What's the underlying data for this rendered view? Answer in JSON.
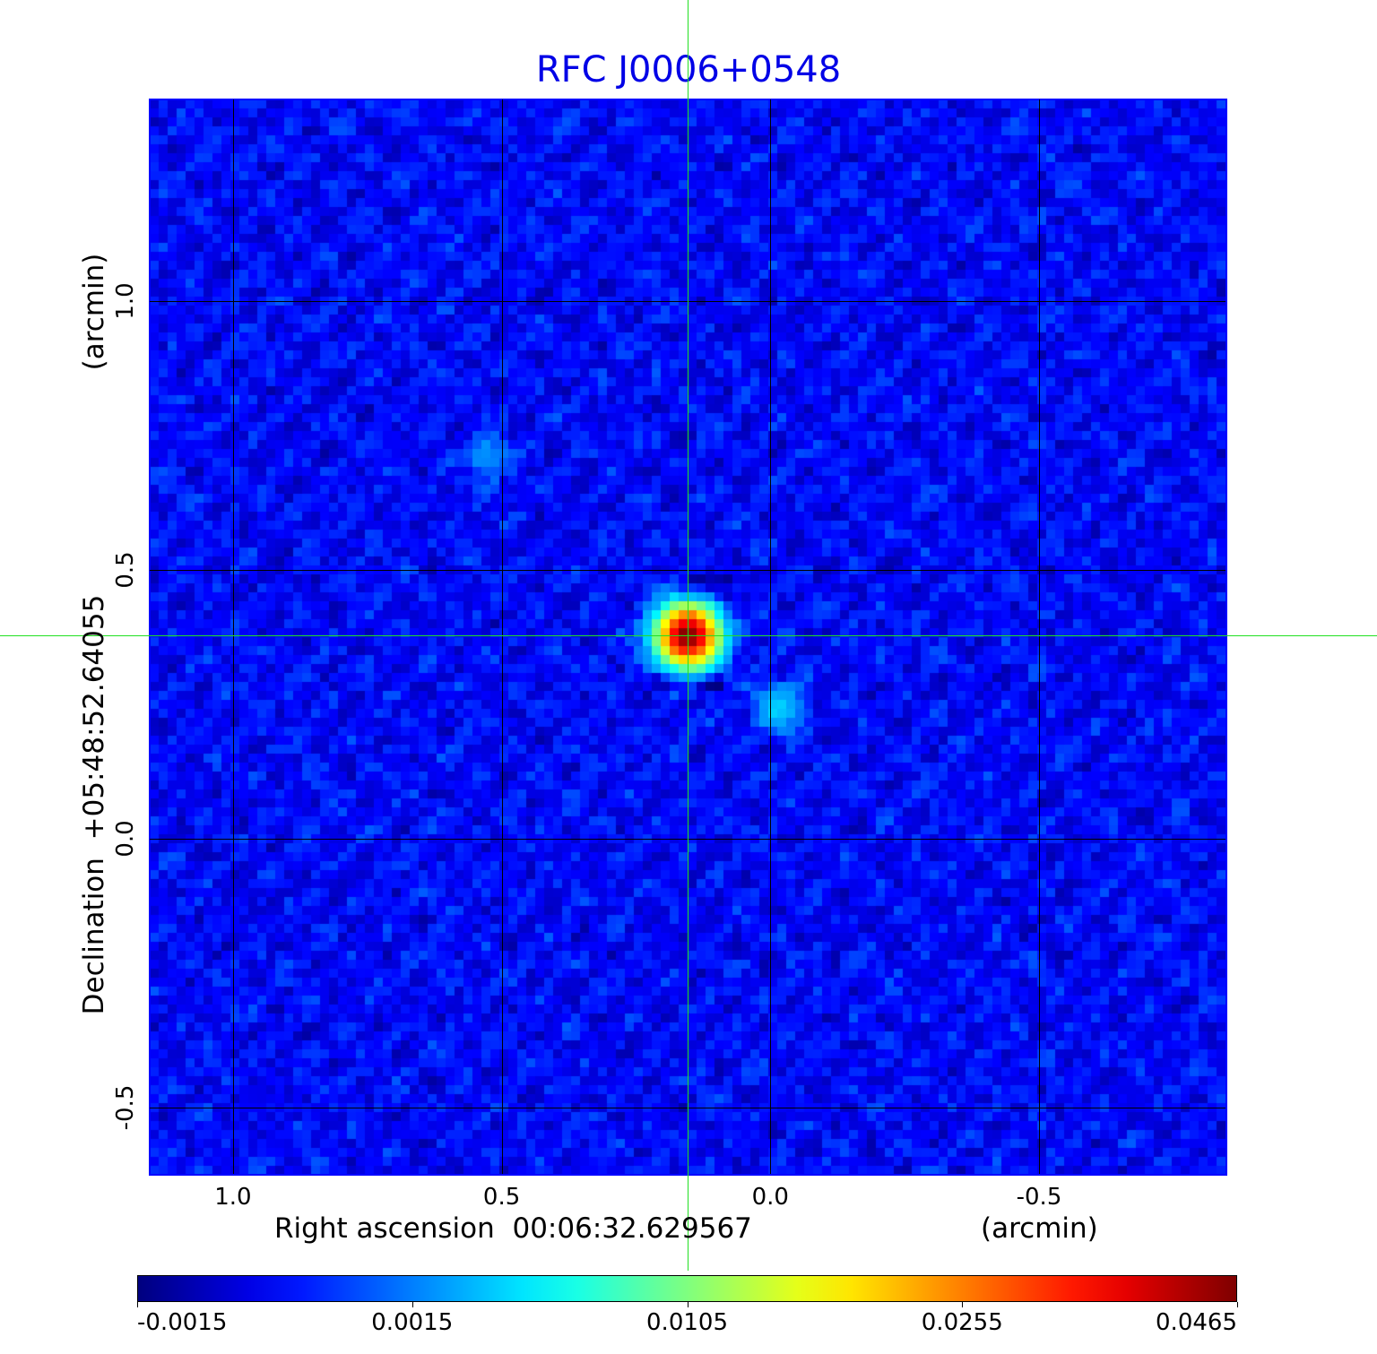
{
  "chart_data": {
    "type": "heatmap",
    "title": "RFC J0006+0548",
    "xlabel": "Right ascension  00:06:32.629567",
    "xunit": "(arcmin)",
    "ylabel": "Declination  +05:48:52.64055",
    "yunit": "(arcmin)",
    "xlim": [
      1.155,
      -0.847
    ],
    "ylim": [
      -0.623,
      1.375
    ],
    "xticks": [
      {
        "v": 1.0,
        "label": "1.0"
      },
      {
        "v": 0.5,
        "label": "0.5"
      },
      {
        "v": 0.0,
        "label": "0.0"
      },
      {
        "v": -0.5,
        "label": "-0.5"
      }
    ],
    "yticks": [
      {
        "v": 1.0,
        "label": "1.0"
      },
      {
        "v": 0.5,
        "label": "0.5"
      },
      {
        "v": 0.0,
        "label": "0.0"
      },
      {
        "v": -0.5,
        "label": "-0.5"
      }
    ],
    "grid": true,
    "crosshair": {
      "x": 0.153,
      "y": 0.378
    },
    "colormap": "jet",
    "colorbar": {
      "ticks": [
        "-0.0015",
        "0.0015",
        "0.0105",
        "0.0255",
        "0.0465"
      ],
      "values": [
        -0.0015,
        0.0015,
        0.0105,
        0.0255,
        0.0465
      ],
      "placement": "bottom"
    },
    "sources": [
      {
        "x": 0.153,
        "y": 0.378,
        "peak": 0.0465,
        "width_arcmin": 0.035
      },
      {
        "x": -0.015,
        "y": 0.243,
        "peak": 0.004,
        "width_arcmin": 0.03
      },
      {
        "x": 0.523,
        "y": 0.71,
        "peak": 0.0025,
        "width_arcmin": 0.025
      }
    ],
    "background_rms": 0.0007,
    "colors": {
      "title": "#0000e6",
      "frame": "#0000ff",
      "crosshair": "#22e022"
    }
  }
}
